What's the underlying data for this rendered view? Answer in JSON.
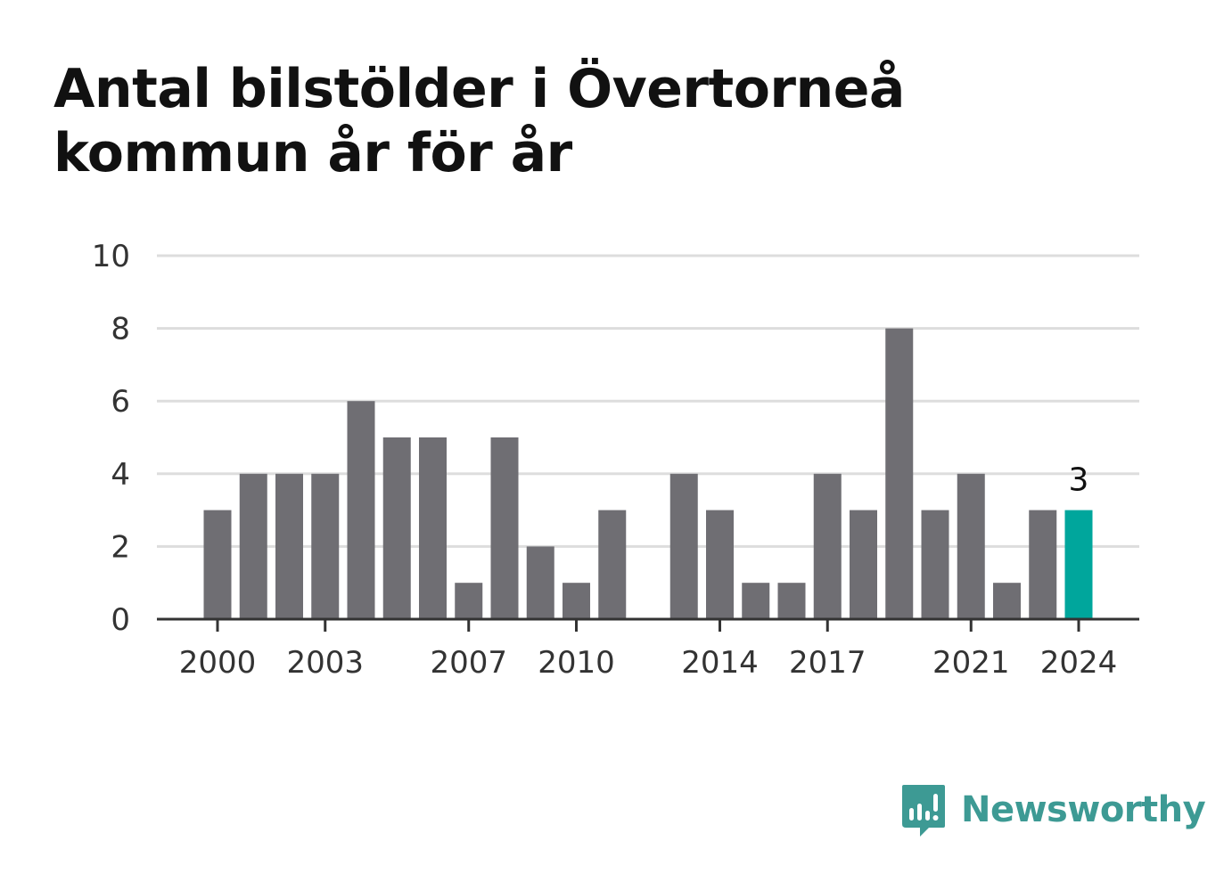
{
  "title": "Antal bilstölder i Övertorneå kommun år för år",
  "brand": {
    "name": "Newsworthy",
    "icon": "newsworthy-logo-icon",
    "color": "#3d9a94"
  },
  "chart_data": {
    "type": "bar",
    "title": "Antal bilstölder i Övertorneå kommun år för år",
    "xlabel": "",
    "ylabel": "",
    "categories": [
      2000,
      2001,
      2002,
      2003,
      2004,
      2005,
      2006,
      2007,
      2008,
      2009,
      2010,
      2011,
      2012,
      2013,
      2014,
      2015,
      2016,
      2017,
      2018,
      2019,
      2020,
      2021,
      2022,
      2023,
      2024
    ],
    "values": [
      3,
      4,
      4,
      4,
      6,
      5,
      5,
      1,
      5,
      2,
      1,
      3,
      0,
      4,
      3,
      1,
      1,
      4,
      3,
      8,
      3,
      4,
      1,
      3,
      3
    ],
    "ylim": [
      0,
      10
    ],
    "yticks": [
      "0",
      "2",
      "4",
      "6",
      "8",
      "10"
    ],
    "xticks": [
      "2000",
      "2003",
      "2007",
      "2010",
      "2014",
      "2017",
      "2021",
      "2024"
    ],
    "grid": true,
    "highlight": {
      "category": 2024,
      "label": "3"
    },
    "colors": {
      "bar": "#6f6e73",
      "highlight": "#00a69c",
      "grid": "#dddddd",
      "axis": "#333333",
      "text": "#333333"
    }
  }
}
